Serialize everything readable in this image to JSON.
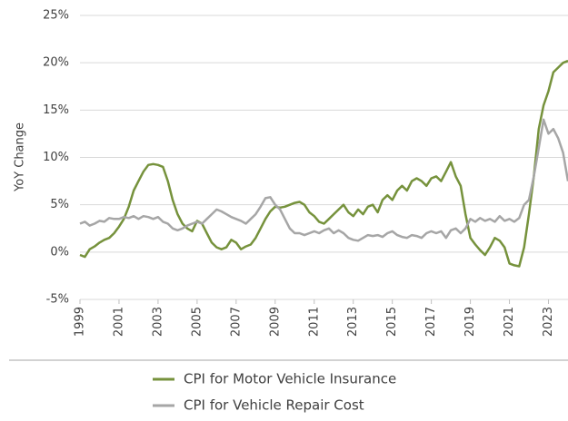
{
  "chart_data": {
    "type": "line",
    "y_axis_label": "YoY Change",
    "x": [
      1999.0,
      1999.25,
      1999.5,
      1999.75,
      2000.0,
      2000.25,
      2000.5,
      2000.75,
      2001.0,
      2001.25,
      2001.5,
      2001.75,
      2002.0,
      2002.25,
      2002.5,
      2002.75,
      2003.0,
      2003.25,
      2003.5,
      2003.75,
      2004.0,
      2004.25,
      2004.5,
      2004.75,
      2005.0,
      2005.25,
      2005.5,
      2005.75,
      2006.0,
      2006.25,
      2006.5,
      2006.75,
      2007.0,
      2007.25,
      2007.5,
      2007.75,
      2008.0,
      2008.25,
      2008.5,
      2008.75,
      2009.0,
      2009.25,
      2009.5,
      2009.75,
      2010.0,
      2010.25,
      2010.5,
      2010.75,
      2011.0,
      2011.25,
      2011.5,
      2011.75,
      2012.0,
      2012.25,
      2012.5,
      2012.75,
      2013.0,
      2013.25,
      2013.5,
      2013.75,
      2014.0,
      2014.25,
      2014.5,
      2014.75,
      2015.0,
      2015.25,
      2015.5,
      2015.75,
      2016.0,
      2016.25,
      2016.5,
      2016.75,
      2017.0,
      2017.25,
      2017.5,
      2017.75,
      2018.0,
      2018.25,
      2018.5,
      2018.75,
      2019.0,
      2019.25,
      2019.5,
      2019.75,
      2020.0,
      2020.25,
      2020.5,
      2020.75,
      2021.0,
      2021.25,
      2021.5,
      2021.75,
      2022.0,
      2022.25,
      2022.5,
      2022.75,
      2023.0,
      2023.25,
      2023.5,
      2023.75,
      2024.0
    ],
    "series": [
      {
        "name": "CPI for Motor Vehicle Insurance",
        "color": "#76923c",
        "values": [
          -0.3,
          -0.5,
          0.3,
          0.6,
          1.0,
          1.3,
          1.5,
          2.0,
          2.7,
          3.5,
          4.8,
          6.5,
          7.5,
          8.5,
          9.2,
          9.3,
          9.2,
          9.0,
          7.5,
          5.5,
          4.0,
          3.0,
          2.5,
          2.2,
          3.3,
          3.0,
          2.0,
          1.0,
          0.5,
          0.3,
          0.5,
          1.3,
          1.0,
          0.3,
          0.6,
          0.8,
          1.5,
          2.5,
          3.5,
          4.3,
          4.8,
          4.7,
          4.8,
          5.0,
          5.2,
          5.3,
          5.0,
          4.2,
          3.8,
          3.2,
          3.0,
          3.5,
          4.0,
          4.5,
          5.0,
          4.2,
          3.8,
          4.5,
          4.0,
          4.8,
          5.0,
          4.2,
          5.5,
          6.0,
          5.5,
          6.5,
          7.0,
          6.5,
          7.5,
          7.8,
          7.5,
          7.0,
          7.8,
          8.0,
          7.5,
          8.5,
          9.5,
          8.0,
          7.0,
          4.0,
          1.5,
          0.8,
          0.2,
          -0.3,
          0.5,
          1.5,
          1.2,
          0.5,
          -1.2,
          -1.4,
          -1.5,
          0.5,
          4.0,
          8.0,
          13.0,
          15.5,
          17.0,
          19.0,
          19.5,
          20.0,
          20.2
        ]
      },
      {
        "name": "CPI for Vehicle Repair Cost",
        "color": "#a6a6a6",
        "values": [
          3.0,
          3.2,
          2.8,
          3.0,
          3.3,
          3.2,
          3.6,
          3.5,
          3.5,
          3.7,
          3.6,
          3.8,
          3.5,
          3.8,
          3.7,
          3.5,
          3.7,
          3.2,
          3.0,
          2.5,
          2.3,
          2.5,
          2.8,
          3.0,
          3.2,
          3.0,
          3.5,
          4.0,
          4.5,
          4.3,
          4.0,
          3.7,
          3.5,
          3.3,
          3.0,
          3.5,
          4.0,
          4.8,
          5.7,
          5.8,
          5.0,
          4.5,
          3.5,
          2.5,
          2.0,
          2.0,
          1.8,
          2.0,
          2.2,
          2.0,
          2.3,
          2.5,
          2.0,
          2.3,
          2.0,
          1.5,
          1.3,
          1.2,
          1.5,
          1.8,
          1.7,
          1.8,
          1.6,
          2.0,
          2.2,
          1.8,
          1.6,
          1.5,
          1.8,
          1.7,
          1.5,
          2.0,
          2.2,
          2.0,
          2.2,
          1.5,
          2.3,
          2.5,
          2.0,
          2.5,
          3.5,
          3.2,
          3.6,
          3.3,
          3.5,
          3.2,
          3.8,
          3.3,
          3.5,
          3.2,
          3.6,
          5.0,
          5.5,
          8.0,
          11.0,
          14.0,
          12.5,
          13.0,
          12.0,
          10.5,
          7.5
        ]
      }
    ],
    "xlim": [
      1999,
      2024
    ],
    "xticks": [
      1999,
      2001,
      2003,
      2005,
      2007,
      2009,
      2011,
      2013,
      2015,
      2017,
      2019,
      2021,
      2023
    ],
    "ylim": [
      -5,
      25
    ],
    "yticks": [
      {
        "value": -5,
        "label": "-5%"
      },
      {
        "value": 0,
        "label": "0%"
      },
      {
        "value": 5,
        "label": "5%"
      },
      {
        "value": 10,
        "label": "10%"
      },
      {
        "value": 15,
        "label": "15%"
      },
      {
        "value": 20,
        "label": "20%"
      },
      {
        "value": 25,
        "label": "25%"
      }
    ],
    "grid": true
  }
}
